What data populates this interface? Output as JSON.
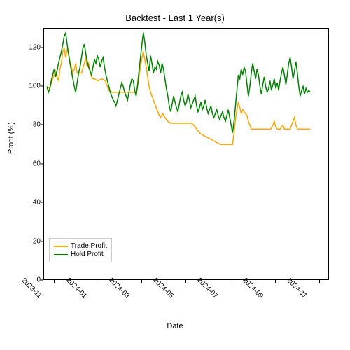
{
  "title": "Backtest - Last 1 Year(s)",
  "xlabel": "Date",
  "ylabel": "Profit (%)",
  "type": "line",
  "background_color": "#ffffff",
  "title_fontsize": 13,
  "label_fontsize": 11,
  "tick_fontsize": 10,
  "xtick_rotation": 45,
  "line_width": 1.5,
  "ylim": [
    0,
    130
  ],
  "yticks": [
    0,
    20,
    40,
    60,
    80,
    100,
    120
  ],
  "xlim_days": [
    0,
    395
  ],
  "xticks": [
    {
      "label": "2023-11",
      "day": 15
    },
    {
      "label": "2024-01",
      "day": 76
    },
    {
      "label": "2024-03",
      "day": 136
    },
    {
      "label": "2024-05",
      "day": 197
    },
    {
      "label": "2024-07",
      "day": 258
    },
    {
      "label": "2024-09",
      "day": 320
    },
    {
      "label": "2024-11",
      "day": 381
    }
  ],
  "legend": {
    "position": "lower-left",
    "items": [
      {
        "label": "Trade Profit",
        "color": "#ffa500"
      },
      {
        "label": "Hold Profit",
        "color": "#008000"
      }
    ]
  },
  "series": [
    {
      "name": "Trade Profit",
      "color": "#ffa500",
      "points": [
        [
          4,
          100
        ],
        [
          8,
          99
        ],
        [
          12,
          104
        ],
        [
          16,
          108
        ],
        [
          18,
          105
        ],
        [
          20,
          103
        ],
        [
          22,
          109
        ],
        [
          24,
          112
        ],
        [
          26,
          118
        ],
        [
          28,
          120
        ],
        [
          30,
          115
        ],
        [
          32,
          119
        ],
        [
          34,
          117
        ],
        [
          36,
          113
        ],
        [
          38,
          110
        ],
        [
          40,
          107
        ],
        [
          42,
          109
        ],
        [
          44,
          112
        ],
        [
          46,
          107
        ],
        [
          48,
          107
        ],
        [
          52,
          107
        ],
        [
          56,
          112
        ],
        [
          58,
          115
        ],
        [
          60,
          110
        ],
        [
          62,
          112
        ],
        [
          64,
          108
        ],
        [
          66,
          105
        ],
        [
          68,
          104
        ],
        [
          70,
          104
        ],
        [
          75,
          103
        ],
        [
          80,
          104
        ],
        [
          85,
          103
        ],
        [
          90,
          98
        ],
        [
          95,
          97
        ],
        [
          100,
          97
        ],
        [
          105,
          97
        ],
        [
          110,
          97
        ],
        [
          115,
          97
        ],
        [
          120,
          97
        ],
        [
          125,
          97
        ],
        [
          128,
          97
        ],
        [
          130,
          100
        ],
        [
          132,
          105
        ],
        [
          134,
          110
        ],
        [
          136,
          115
        ],
        [
          138,
          118
        ],
        [
          140,
          114
        ],
        [
          142,
          110
        ],
        [
          144,
          105
        ],
        [
          146,
          100
        ],
        [
          148,
          97
        ],
        [
          150,
          95
        ],
        [
          155,
          90
        ],
        [
          158,
          87
        ],
        [
          160,
          85
        ],
        [
          162,
          84
        ],
        [
          165,
          86
        ],
        [
          168,
          84
        ],
        [
          172,
          82
        ],
        [
          176,
          81
        ],
        [
          180,
          81
        ],
        [
          190,
          81
        ],
        [
          200,
          81
        ],
        [
          205,
          81
        ],
        [
          208,
          80
        ],
        [
          212,
          78
        ],
        [
          216,
          76
        ],
        [
          220,
          75
        ],
        [
          225,
          74
        ],
        [
          230,
          73
        ],
        [
          235,
          72
        ],
        [
          240,
          71
        ],
        [
          245,
          70
        ],
        [
          250,
          70
        ],
        [
          255,
          70
        ],
        [
          258,
          70
        ],
        [
          260,
          70
        ],
        [
          262,
          70
        ],
        [
          264,
          76
        ],
        [
          266,
          83
        ],
        [
          268,
          88
        ],
        [
          270,
          92
        ],
        [
          272,
          89
        ],
        [
          274,
          86
        ],
        [
          276,
          88
        ],
        [
          278,
          87
        ],
        [
          280,
          86
        ],
        [
          282,
          85
        ],
        [
          284,
          82
        ],
        [
          286,
          80
        ],
        [
          288,
          78
        ],
        [
          292,
          78
        ],
        [
          300,
          78
        ],
        [
          310,
          78
        ],
        [
          315,
          78
        ],
        [
          318,
          80
        ],
        [
          320,
          82
        ],
        [
          322,
          79
        ],
        [
          324,
          78
        ],
        [
          328,
          78
        ],
        [
          332,
          80
        ],
        [
          334,
          78
        ],
        [
          338,
          78
        ],
        [
          342,
          78
        ],
        [
          346,
          82
        ],
        [
          348,
          84
        ],
        [
          350,
          80
        ],
        [
          352,
          78
        ],
        [
          356,
          78
        ],
        [
          360,
          78
        ],
        [
          365,
          78
        ],
        [
          370,
          78
        ]
      ]
    },
    {
      "name": "Hold Profit",
      "color": "#008000",
      "points": [
        [
          4,
          100
        ],
        [
          6,
          97
        ],
        [
          8,
          99
        ],
        [
          10,
          103
        ],
        [
          12,
          106
        ],
        [
          14,
          109
        ],
        [
          16,
          105
        ],
        [
          18,
          108
        ],
        [
          20,
          112
        ],
        [
          22,
          115
        ],
        [
          24,
          118
        ],
        [
          26,
          122
        ],
        [
          28,
          126
        ],
        [
          30,
          128
        ],
        [
          32,
          122
        ],
        [
          34,
          117
        ],
        [
          36,
          112
        ],
        [
          38,
          108
        ],
        [
          40,
          104
        ],
        [
          42,
          100
        ],
        [
          44,
          97
        ],
        [
          46,
          102
        ],
        [
          48,
          107
        ],
        [
          50,
          110
        ],
        [
          52,
          115
        ],
        [
          54,
          120
        ],
        [
          56,
          122
        ],
        [
          58,
          117
        ],
        [
          60,
          113
        ],
        [
          62,
          110
        ],
        [
          64,
          108
        ],
        [
          66,
          106
        ],
        [
          68,
          110
        ],
        [
          70,
          114
        ],
        [
          72,
          112
        ],
        [
          74,
          116
        ],
        [
          76,
          114
        ],
        [
          78,
          110
        ],
        [
          80,
          113
        ],
        [
          82,
          115
        ],
        [
          84,
          110
        ],
        [
          86,
          106
        ],
        [
          88,
          103
        ],
        [
          90,
          100
        ],
        [
          92,
          97
        ],
        [
          94,
          95
        ],
        [
          96,
          93
        ],
        [
          98,
          92
        ],
        [
          100,
          90
        ],
        [
          102,
          93
        ],
        [
          104,
          96
        ],
        [
          106,
          99
        ],
        [
          108,
          102
        ],
        [
          110,
          100
        ],
        [
          112,
          97
        ],
        [
          114,
          95
        ],
        [
          116,
          93
        ],
        [
          118,
          97
        ],
        [
          120,
          101
        ],
        [
          122,
          104
        ],
        [
          124,
          103
        ],
        [
          126,
          98
        ],
        [
          128,
          95
        ],
        [
          130,
          101
        ],
        [
          132,
          108
        ],
        [
          134,
          115
        ],
        [
          136,
          122
        ],
        [
          138,
          128
        ],
        [
          140,
          123
        ],
        [
          142,
          116
        ],
        [
          144,
          112
        ],
        [
          146,
          108
        ],
        [
          148,
          116
        ],
        [
          150,
          112
        ],
        [
          152,
          107
        ],
        [
          154,
          110
        ],
        [
          156,
          109
        ],
        [
          158,
          113
        ],
        [
          160,
          111
        ],
        [
          162,
          107
        ],
        [
          164,
          112
        ],
        [
          166,
          109
        ],
        [
          168,
          104
        ],
        [
          170,
          99
        ],
        [
          172,
          95
        ],
        [
          174,
          90
        ],
        [
          176,
          87
        ],
        [
          178,
          91
        ],
        [
          180,
          95
        ],
        [
          182,
          92
        ],
        [
          184,
          89
        ],
        [
          186,
          87
        ],
        [
          188,
          91
        ],
        [
          190,
          95
        ],
        [
          192,
          97
        ],
        [
          194,
          93
        ],
        [
          196,
          90
        ],
        [
          198,
          92
        ],
        [
          200,
          96
        ],
        [
          202,
          93
        ],
        [
          204,
          89
        ],
        [
          206,
          91
        ],
        [
          208,
          93
        ],
        [
          210,
          95
        ],
        [
          212,
          90
        ],
        [
          214,
          87
        ],
        [
          216,
          89
        ],
        [
          218,
          92
        ],
        [
          220,
          88
        ],
        [
          222,
          90
        ],
        [
          224,
          93
        ],
        [
          226,
          89
        ],
        [
          228,
          86
        ],
        [
          230,
          88
        ],
        [
          232,
          90
        ],
        [
          234,
          86
        ],
        [
          236,
          84
        ],
        [
          238,
          86
        ],
        [
          240,
          88
        ],
        [
          242,
          85
        ],
        [
          244,
          83
        ],
        [
          246,
          85
        ],
        [
          248,
          87
        ],
        [
          250,
          84
        ],
        [
          252,
          82
        ],
        [
          254,
          85
        ],
        [
          256,
          88
        ],
        [
          258,
          84
        ],
        [
          260,
          80
        ],
        [
          262,
          76
        ],
        [
          264,
          82
        ],
        [
          266,
          90
        ],
        [
          268,
          98
        ],
        [
          270,
          106
        ],
        [
          272,
          104
        ],
        [
          274,
          109
        ],
        [
          276,
          106
        ],
        [
          278,
          110
        ],
        [
          280,
          108
        ],
        [
          282,
          101
        ],
        [
          284,
          95
        ],
        [
          286,
          100
        ],
        [
          288,
          107
        ],
        [
          290,
          112
        ],
        [
          292,
          108
        ],
        [
          294,
          104
        ],
        [
          296,
          109
        ],
        [
          298,
          106
        ],
        [
          300,
          100
        ],
        [
          302,
          96
        ],
        [
          304,
          101
        ],
        [
          306,
          105
        ],
        [
          308,
          100
        ],
        [
          310,
          97
        ],
        [
          312,
          99
        ],
        [
          314,
          103
        ],
        [
          316,
          98
        ],
        [
          318,
          101
        ],
        [
          320,
          104
        ],
        [
          322,
          99
        ],
        [
          324,
          102
        ],
        [
          326,
          98
        ],
        [
          328,
          103
        ],
        [
          330,
          107
        ],
        [
          332,
          110
        ],
        [
          334,
          106
        ],
        [
          336,
          101
        ],
        [
          338,
          106
        ],
        [
          340,
          112
        ],
        [
          342,
          115
        ],
        [
          344,
          110
        ],
        [
          346,
          104
        ],
        [
          348,
          108
        ],
        [
          350,
          113
        ],
        [
          352,
          107
        ],
        [
          354,
          100
        ],
        [
          356,
          95
        ],
        [
          358,
          98
        ],
        [
          360,
          100
        ],
        [
          362,
          96
        ],
        [
          364,
          99
        ],
        [
          366,
          97
        ],
        [
          368,
          98
        ],
        [
          370,
          97
        ]
      ]
    }
  ]
}
